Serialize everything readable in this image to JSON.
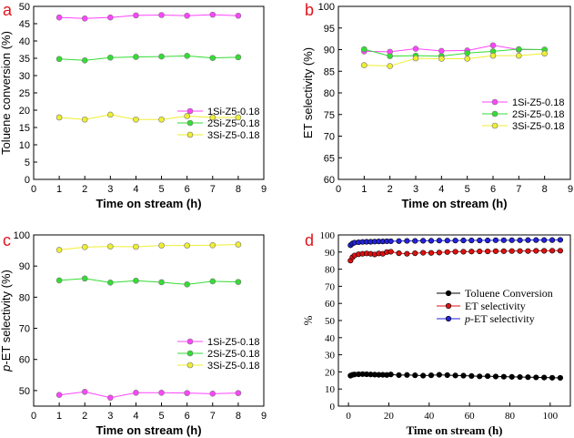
{
  "chart_data": [
    {
      "panel_label": "a",
      "type": "line",
      "xlabel": "Time on stream (h)",
      "ylabel": "Toluene conversion (%)",
      "xlim": [
        0,
        9
      ],
      "ylim": [
        0,
        50
      ],
      "xticks": [
        "0",
        "1",
        "2",
        "3",
        "4",
        "5",
        "6",
        "7",
        "8",
        "9"
      ],
      "yticks": [
        "0",
        "5",
        "10",
        "15",
        "20",
        "25",
        "30",
        "35",
        "40",
        "45",
        "50"
      ],
      "legend_position": "center-right",
      "x": [
        1,
        2,
        3,
        4,
        5,
        6,
        7,
        8
      ],
      "series": [
        {
          "name": "1Si-Z5-0.18",
          "color": "#ff44ff",
          "values": [
            46.8,
            46.5,
            46.8,
            47.4,
            47.5,
            47.3,
            47.6,
            47.3
          ]
        },
        {
          "name": "2Si-Z5-0.18",
          "color": "#33dd33",
          "values": [
            34.8,
            34.4,
            35.2,
            35.4,
            35.5,
            35.7,
            35.1,
            35.3
          ]
        },
        {
          "name": "3Si-Z5-0.18",
          "color": "#eeee33",
          "values": [
            17.9,
            17.3,
            18.7,
            17.3,
            17.3,
            18.3,
            17.9,
            17.9
          ]
        }
      ]
    },
    {
      "panel_label": "b",
      "type": "line",
      "xlabel": "Time on stream (h)",
      "ylabel": "ET selectivity (%)",
      "xlim": [
        0,
        9
      ],
      "ylim": [
        60,
        100
      ],
      "xticks": [
        "0",
        "1",
        "2",
        "3",
        "4",
        "5",
        "6",
        "7",
        "8",
        "9"
      ],
      "yticks": [
        "60",
        "65",
        "70",
        "75",
        "80",
        "85",
        "90",
        "95",
        "100"
      ],
      "legend_position": "center-right",
      "x": [
        1,
        2,
        3,
        4,
        5,
        6,
        7,
        8
      ],
      "series": [
        {
          "name": "1Si-Z5-0.18",
          "color": "#ff44ff",
          "values": [
            89.6,
            89.5,
            90.2,
            89.7,
            89.8,
            91.0,
            90.0,
            90.0
          ]
        },
        {
          "name": "2Si-Z5-0.18",
          "color": "#33dd33",
          "values": [
            90.1,
            88.5,
            88.6,
            88.5,
            89.2,
            89.6,
            90.1,
            90.0
          ]
        },
        {
          "name": "3Si-Z5-0.18",
          "color": "#eeee33",
          "values": [
            86.4,
            86.2,
            88.0,
            87.9,
            87.9,
            88.6,
            88.6,
            89.1
          ]
        }
      ]
    },
    {
      "panel_label": "c",
      "type": "line",
      "xlabel": "Time on stream (h)",
      "ylabel": "p-ET selectivity (%)",
      "ylabel_parts": {
        "italic": "p",
        "rest": "-ET selectivity (%)"
      },
      "xlim": [
        0,
        9
      ],
      "ylim": [
        45,
        100
      ],
      "xticks": [
        "0",
        "1",
        "2",
        "3",
        "4",
        "5",
        "6",
        "7",
        "8",
        "9"
      ],
      "yticks": [
        "50",
        "60",
        "70",
        "80",
        "90",
        "100"
      ],
      "legend_position": "center-right",
      "x": [
        1,
        2,
        3,
        4,
        5,
        6,
        7,
        8
      ],
      "series": [
        {
          "name": "1Si-Z5-0.18",
          "color": "#ff44ff",
          "values": [
            48.6,
            49.6,
            47.7,
            49.3,
            49.3,
            49.2,
            49.0,
            49.2
          ]
        },
        {
          "name": "2Si-Z5-0.18",
          "color": "#33dd33",
          "values": [
            85.4,
            86.0,
            84.7,
            85.3,
            84.8,
            84.1,
            85.1,
            84.9
          ]
        },
        {
          "name": "3Si-Z5-0.18",
          "color": "#eeee33",
          "values": [
            95.2,
            96.1,
            96.3,
            96.2,
            96.6,
            96.6,
            96.7,
            96.9
          ]
        }
      ]
    },
    {
      "panel_label": "d",
      "type": "scatter",
      "xlabel": "Time on stream (h)",
      "ylabel": "%",
      "xlim": [
        -5,
        110
      ],
      "ylim": [
        0,
        100
      ],
      "xticks": [
        "0",
        "20",
        "40",
        "60",
        "80",
        "100"
      ],
      "yticks": [
        "0",
        "10",
        "20",
        "30",
        "40",
        "50",
        "60",
        "70",
        "80",
        "90",
        "100"
      ],
      "legend_position": "center-right",
      "x": [
        1,
        2,
        3,
        5,
        7,
        9,
        11,
        13,
        15,
        17,
        19,
        21,
        25,
        29,
        33,
        37,
        41,
        45,
        49,
        53,
        57,
        61,
        65,
        69,
        73,
        77,
        81,
        85,
        89,
        93,
        97,
        101,
        105
      ],
      "series": [
        {
          "name": "Toluene Conversion",
          "color": "#000000",
          "values": [
            17.8,
            18.3,
            18.5,
            18.6,
            18.7,
            18.6,
            18.5,
            18.4,
            18.3,
            18.3,
            18.2,
            18.5,
            18.1,
            18.2,
            18.0,
            17.8,
            18.0,
            18.3,
            18.1,
            17.9,
            17.8,
            17.6,
            17.4,
            17.5,
            17.3,
            17.2,
            17.1,
            17.0,
            16.9,
            16.8,
            16.7,
            16.6,
            16.5
          ]
        },
        {
          "name": "ET selectivity",
          "color": "#dd1111",
          "values": [
            85.0,
            87.0,
            88.0,
            88.7,
            89.0,
            89.2,
            89.0,
            88.6,
            89.2,
            89.0,
            90.0,
            90.2,
            89.3,
            89.0,
            89.3,
            89.6,
            89.5,
            89.7,
            90.0,
            90.2,
            90.2,
            90.3,
            90.4,
            90.4,
            90.5,
            90.5,
            90.6,
            90.6,
            90.6,
            90.7,
            90.7,
            90.8,
            90.8
          ]
        },
        {
          "name": "p-ET selectivity",
          "name_parts": {
            "italic": "p",
            "rest": "-ET selectivity"
          },
          "color": "#2222dd",
          "values": [
            94.0,
            95.0,
            95.5,
            95.7,
            95.9,
            96.0,
            96.0,
            96.1,
            96.2,
            96.2,
            96.3,
            96.3,
            96.4,
            96.5,
            96.5,
            96.6,
            96.6,
            96.7,
            96.7,
            96.7,
            96.8,
            96.8,
            96.8,
            96.8,
            96.9,
            96.9,
            96.9,
            96.9,
            97.0,
            97.0,
            97.0,
            97.0,
            97.1
          ]
        }
      ]
    }
  ]
}
